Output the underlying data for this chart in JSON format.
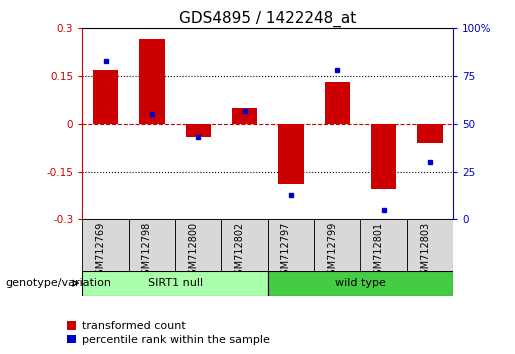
{
  "title": "GDS4895 / 1422248_at",
  "samples": [
    "GSM712769",
    "GSM712798",
    "GSM712800",
    "GSM712802",
    "GSM712797",
    "GSM712799",
    "GSM712801",
    "GSM712803"
  ],
  "red_values": [
    0.17,
    0.265,
    -0.04,
    0.05,
    -0.19,
    0.13,
    -0.205,
    -0.06
  ],
  "blue_values": [
    83,
    55,
    43,
    57,
    13,
    78,
    5,
    30
  ],
  "group_defs": [
    {
      "start": 0,
      "end": 3,
      "label": "SIRT1 null",
      "color": "#aaffaa"
    },
    {
      "start": 4,
      "end": 7,
      "label": "wild type",
      "color": "#44cc44"
    }
  ],
  "ylim_left": [
    -0.3,
    0.3
  ],
  "ylim_right": [
    0,
    100
  ],
  "yticks_left": [
    -0.3,
    -0.15,
    0.0,
    0.15,
    0.3
  ],
  "yticks_right": [
    0,
    25,
    50,
    75,
    100
  ],
  "hlines_dotted": [
    0.15,
    -0.15
  ],
  "hline_zero": 0.0,
  "red_color": "#CC0000",
  "blue_color": "#0000CC",
  "bar_width": 0.55,
  "title_fontsize": 11,
  "tick_fontsize": 7.5,
  "label_fontsize": 8,
  "legend_fontsize": 8
}
